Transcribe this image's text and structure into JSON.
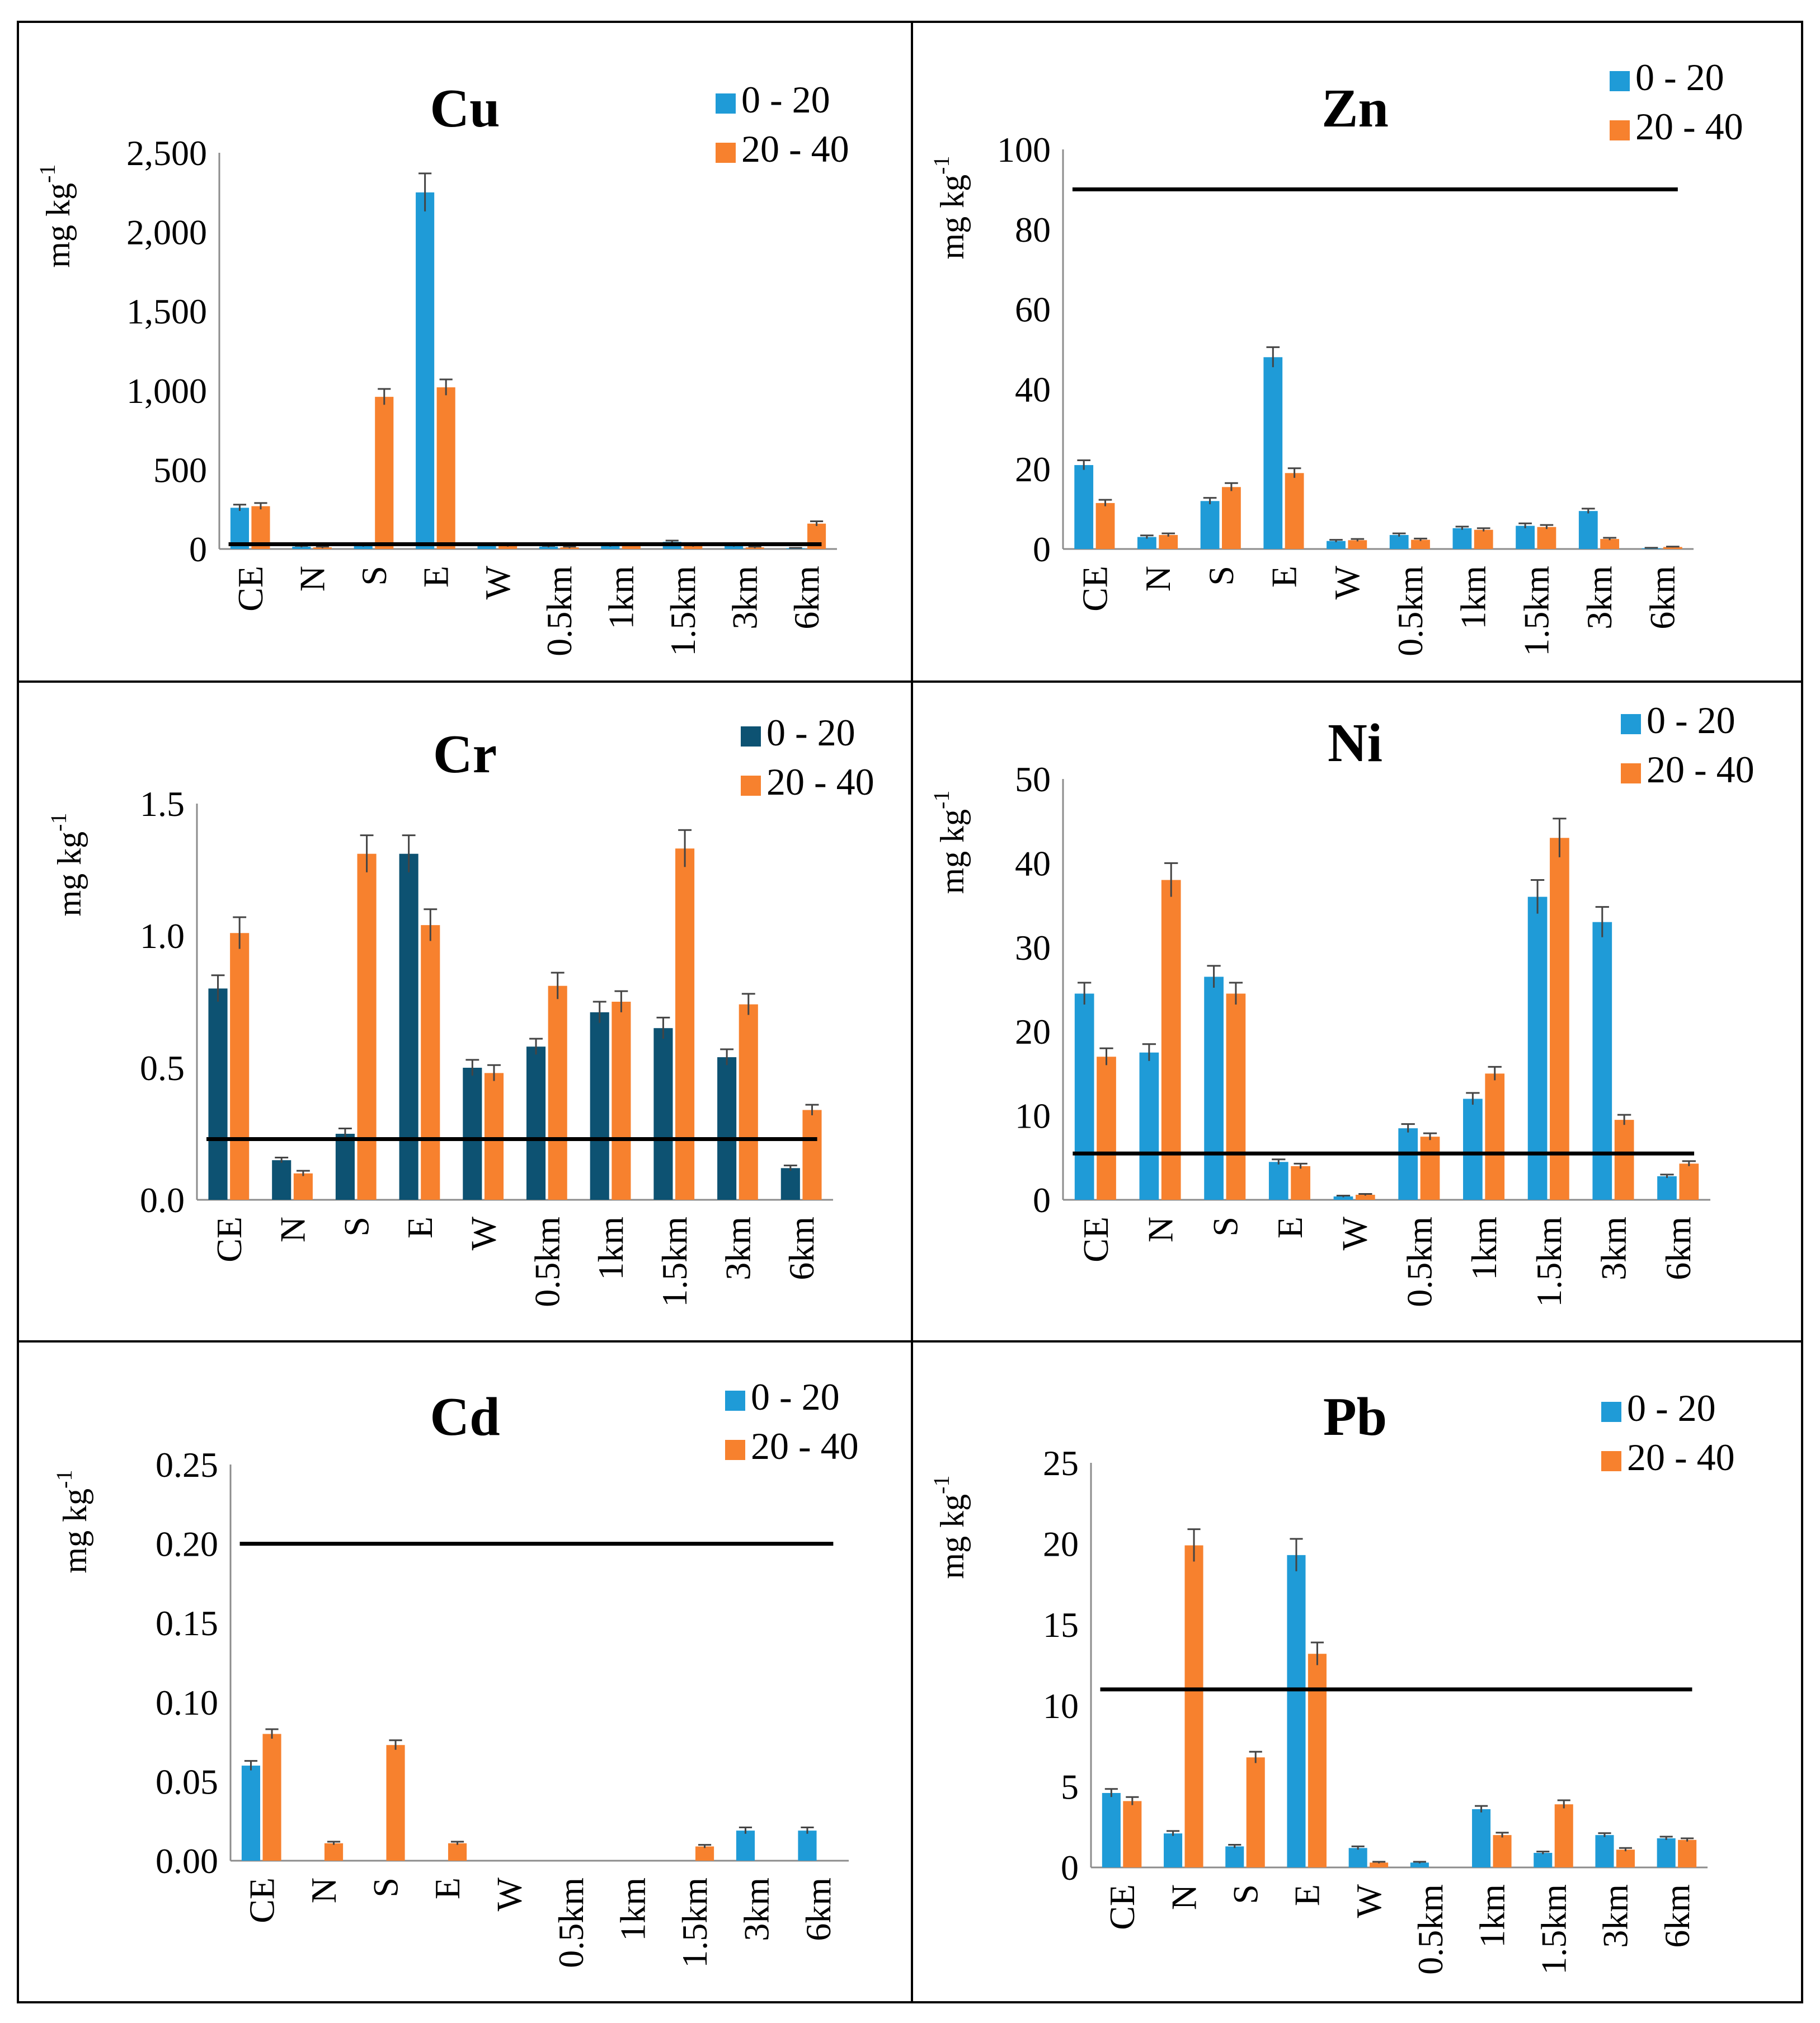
{
  "figure": {
    "name": "heavy-metal-concentrations"
  },
  "chart_data": [
    {
      "id": "cu",
      "type": "bar",
      "title": "Cu",
      "ylabel": "mg kg",
      "ylabel_sup": "-1",
      "categories": [
        "CE",
        "N",
        "S",
        "E",
        "W",
        "0.5km",
        "1km",
        "1.5km",
        "3km",
        "6km"
      ],
      "ylim": [
        0,
        2500
      ],
      "yticks": [
        0,
        500,
        1000,
        1500,
        2000,
        2500
      ],
      "ytick_labels": [
        "0",
        "500",
        "1,000",
        "1,500",
        "2,000",
        "2,500"
      ],
      "series": [
        {
          "name": "0 - 20",
          "color": "#1f9bd7",
          "values": [
            260,
            15,
            20,
            2250,
            30,
            15,
            20,
            45,
            20,
            5
          ],
          "errors": [
            20,
            5,
            5,
            120,
            5,
            5,
            5,
            8,
            5,
            2
          ]
        },
        {
          "name": "20 - 40",
          "color": "#f7812e",
          "values": [
            270,
            10,
            960,
            1020,
            20,
            10,
            25,
            20,
            10,
            160
          ],
          "errors": [
            20,
            5,
            50,
            50,
            5,
            5,
            5,
            5,
            5,
            15
          ]
        }
      ],
      "reference_line": 30,
      "legend_position": "top-right",
      "grid": false
    },
    {
      "id": "zn",
      "type": "bar",
      "title": "Zn",
      "ylabel": "mg kg",
      "ylabel_sup": "-1",
      "categories": [
        "CE",
        "N",
        "S",
        "E",
        "W",
        "0.5km",
        "1km",
        "1.5km",
        "3km",
        "6km"
      ],
      "ylim": [
        0,
        100
      ],
      "yticks": [
        0,
        20,
        40,
        60,
        80,
        100
      ],
      "ytick_labels": [
        "0",
        "20",
        "40",
        "60",
        "80",
        "100"
      ],
      "series": [
        {
          "name": "0 - 20",
          "color": "#1f9bd7",
          "values": [
            21,
            3,
            12,
            48,
            2,
            3.5,
            5.2,
            5.8,
            9.5,
            0.2
          ],
          "errors": [
            1.2,
            0.4,
            0.8,
            2.5,
            0.3,
            0.4,
            0.4,
            0.6,
            0.6,
            0.1
          ]
        },
        {
          "name": "20 - 40",
          "color": "#f7812e",
          "values": [
            11.5,
            3.5,
            15.5,
            19,
            2.2,
            2.3,
            4.8,
            5.5,
            2.5,
            0.5
          ],
          "errors": [
            0.8,
            0.4,
            1,
            1.2,
            0.3,
            0.3,
            0.4,
            0.5,
            0.3,
            0.1
          ]
        }
      ],
      "reference_line": 90,
      "legend_position": "top-right",
      "grid": false
    },
    {
      "id": "cr",
      "type": "bar",
      "title": "Cr",
      "ylabel": "mg kg",
      "ylabel_sup": "-1",
      "categories": [
        "CE",
        "N",
        "S",
        "E",
        "W",
        "0.5km",
        "1km",
        "1.5km",
        "3km",
        "6km"
      ],
      "ylim": [
        0,
        1.5
      ],
      "yticks": [
        0,
        0.5,
        1.0,
        1.5
      ],
      "ytick_labels": [
        "0.0",
        "0.5",
        "1.0",
        "1.5"
      ],
      "series": [
        {
          "name": "0 -  20",
          "color": "#0d5272",
          "values": [
            0.8,
            0.15,
            0.25,
            1.31,
            0.5,
            0.58,
            0.71,
            0.65,
            0.54,
            0.12
          ],
          "errors": [
            0.05,
            0.01,
            0.02,
            0.07,
            0.03,
            0.03,
            0.04,
            0.04,
            0.03,
            0.01
          ]
        },
        {
          "name": "20 - 40",
          "color": "#f7812e",
          "values": [
            1.01,
            0.1,
            1.31,
            1.04,
            0.48,
            0.81,
            0.75,
            1.33,
            0.74,
            0.34
          ],
          "errors": [
            0.06,
            0.01,
            0.07,
            0.06,
            0.03,
            0.05,
            0.04,
            0.07,
            0.04,
            0.02
          ]
        }
      ],
      "reference_line": 0.23,
      "legend_position": "top-right",
      "grid": false
    },
    {
      "id": "ni",
      "type": "bar",
      "title": "Ni",
      "ylabel": "mg kg",
      "ylabel_sup": "-1",
      "categories": [
        "CE",
        "N",
        "S",
        "E",
        "W",
        "0.5km",
        "1km",
        "1.5km",
        "3km",
        "6km"
      ],
      "ylim": [
        0,
        50
      ],
      "yticks": [
        0,
        10,
        20,
        30,
        40,
        50
      ],
      "ytick_labels": [
        "0",
        "10",
        "20",
        "30",
        "40",
        "50"
      ],
      "series": [
        {
          "name": "0 - 20",
          "color": "#1f9bd7",
          "values": [
            24.5,
            17.5,
            26.5,
            4.5,
            0.4,
            8.5,
            12,
            36,
            33,
            2.8
          ],
          "errors": [
            1.3,
            1,
            1.3,
            0.3,
            0.1,
            0.5,
            0.7,
            2,
            1.8,
            0.2
          ]
        },
        {
          "name": "20 - 40",
          "color": "#f7812e",
          "values": [
            17,
            38,
            24.5,
            4,
            0.6,
            7.5,
            15,
            43,
            9.5,
            4.3
          ],
          "errors": [
            1,
            2,
            1.3,
            0.3,
            0.1,
            0.4,
            0.8,
            2.3,
            0.6,
            0.3
          ]
        }
      ],
      "reference_line": 5.5,
      "legend_position": "top-right",
      "grid": false
    },
    {
      "id": "cd",
      "type": "bar",
      "title": "Cd",
      "ylabel": "mg kg",
      "ylabel_sup": "-1",
      "categories": [
        "CE",
        "N",
        "S",
        "E",
        "W",
        "0.5km",
        "1km",
        "1.5km",
        "3km",
        "6km"
      ],
      "ylim": [
        0,
        0.25
      ],
      "yticks": [
        0,
        0.05,
        0.1,
        0.15,
        0.2,
        0.25
      ],
      "ytick_labels": [
        "0.00",
        "0.05",
        "0.10",
        "0.15",
        "0.20",
        "0.25"
      ],
      "series": [
        {
          "name": "0 - 20",
          "color": "#1f9bd7",
          "values": [
            0.06,
            0,
            0,
            0,
            0,
            0,
            0,
            0,
            0.019,
            0.019
          ],
          "errors": [
            0.003,
            0,
            0,
            0,
            0,
            0,
            0,
            0,
            0.002,
            0.002
          ]
        },
        {
          "name": "20 - 40",
          "color": "#f7812e",
          "values": [
            0.08,
            0.011,
            0.073,
            0.011,
            0,
            0,
            0,
            0.009,
            0,
            0
          ],
          "errors": [
            0.003,
            0.001,
            0.003,
            0.001,
            0,
            0,
            0,
            0.001,
            0,
            0
          ]
        }
      ],
      "reference_line": 0.2,
      "legend_position": "top-right",
      "grid": false
    },
    {
      "id": "pb",
      "type": "bar",
      "title": "Pb",
      "ylabel": "mg kg",
      "ylabel_sup": "-1",
      "categories": [
        "CE",
        "N",
        "S",
        "E",
        "W",
        "0.5km",
        "1km",
        "1.5km",
        "3km",
        "6km"
      ],
      "ylim": [
        0,
        25
      ],
      "yticks": [
        0,
        5,
        10,
        15,
        20,
        25
      ],
      "ytick_labels": [
        "0",
        "5",
        "10",
        "15",
        "20",
        "25"
      ],
      "series": [
        {
          "name": "0 - 20",
          "color": "#1f9bd7",
          "values": [
            4.6,
            2.1,
            1.3,
            19.3,
            1.2,
            0.3,
            3.6,
            0.9,
            2,
            1.8
          ],
          "errors": [
            0.25,
            0.15,
            0.1,
            1,
            0.1,
            0.05,
            0.2,
            0.08,
            0.12,
            0.1
          ]
        },
        {
          "name": "20 - 40",
          "color": "#f7812e",
          "values": [
            4.1,
            19.9,
            6.8,
            13.2,
            0.3,
            0,
            2,
            3.9,
            1.1,
            1.7
          ],
          "errors": [
            0.25,
            1,
            0.35,
            0.7,
            0.05,
            0,
            0.15,
            0.25,
            0.1,
            0.1
          ]
        }
      ],
      "reference_line": 11,
      "legend_position": "top-right",
      "grid": false
    }
  ]
}
